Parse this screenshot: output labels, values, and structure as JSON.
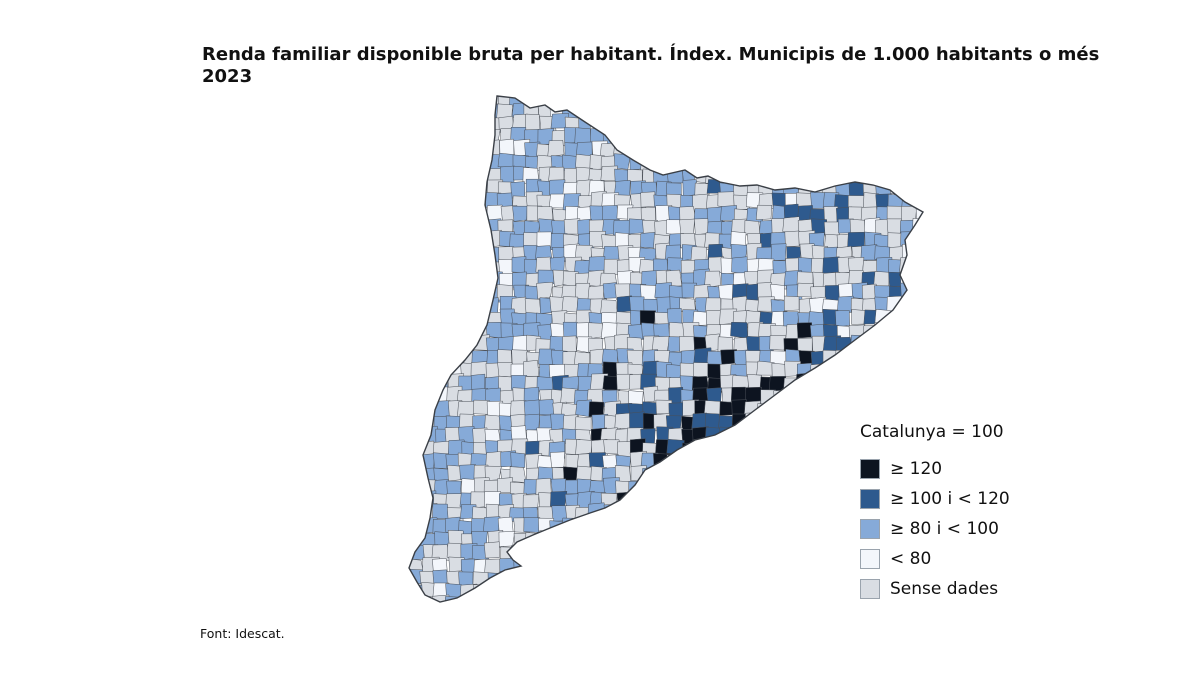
{
  "title": "Renda familiar disponible bruta per habitant. Índex. Municipis de 1.000 habitants o més 2023",
  "legend": {
    "title": "Catalunya = 100",
    "items": [
      {
        "label": "≥ 120",
        "color": "#0d1420"
      },
      {
        "label": "≥ 100 i < 120",
        "color": "#2e5a8e"
      },
      {
        "label": "≥ 80 i < 100",
        "color": "#86aad8"
      },
      {
        "label": "< 80",
        "color": "#f3f6fb"
      },
      {
        "label": "Sense dades",
        "color": "#d9dde3"
      }
    ]
  },
  "source": "Font: Idescat.",
  "colors": {
    "boundary": "#4a4f57",
    "no_data": "#d9dde3"
  }
}
